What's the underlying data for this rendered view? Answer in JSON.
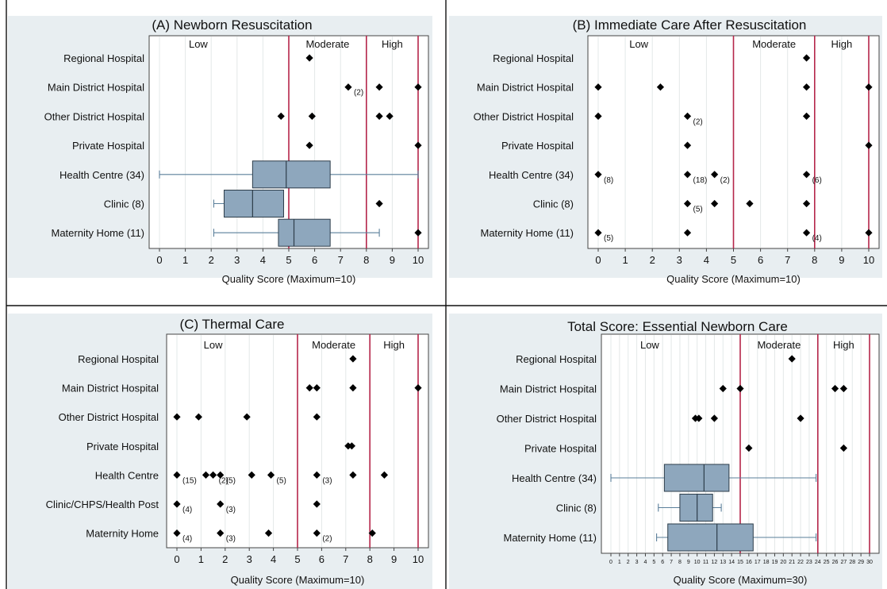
{
  "chart_data": [
    {
      "type": "box",
      "title": "(A) Newborn Resuscitation",
      "xlabel": "Quality Score (Maximum=10)",
      "xlim": [
        0,
        10
      ],
      "ticks": [
        "0",
        "1",
        "2",
        "3",
        "4",
        "5",
        "6",
        "7",
        "8",
        "9",
        "10"
      ],
      "zones": [
        {
          "label": "Low",
          "from": 0,
          "to": 5
        },
        {
          "label": "Moderate",
          "from": 5,
          "to": 8
        },
        {
          "label": "High",
          "from": 8,
          "to": 10
        }
      ],
      "thresholds": [
        5,
        8,
        10
      ],
      "categories": [
        "Regional Hospital",
        "Main District Hospital",
        "Other District Hospital",
        "Private Hospital",
        "Health Centre (34)",
        "Clinic (8)",
        "Maternity Home (11)"
      ],
      "points": [
        {
          "row": 0,
          "x": 5.8,
          "label": ""
        },
        {
          "row": 1,
          "x": 7.3,
          "label": "(2)"
        },
        {
          "row": 1,
          "x": 8.5,
          "label": ""
        },
        {
          "row": 1,
          "x": 10.0,
          "label": ""
        },
        {
          "row": 2,
          "x": 4.7,
          "label": ""
        },
        {
          "row": 2,
          "x": 5.9,
          "label": ""
        },
        {
          "row": 2,
          "x": 8.5,
          "label": ""
        },
        {
          "row": 2,
          "x": 8.9,
          "label": ""
        },
        {
          "row": 3,
          "x": 5.8,
          "label": ""
        },
        {
          "row": 3,
          "x": 10.0,
          "label": ""
        },
        {
          "row": 5,
          "x": 8.5,
          "label": ""
        },
        {
          "row": 6,
          "x": 10.0,
          "label": ""
        }
      ],
      "boxes": [
        {
          "row": 4,
          "min": 0,
          "q1": 3.6,
          "median": 4.9,
          "q3": 6.6,
          "max": 10
        },
        {
          "row": 5,
          "min": 2.1,
          "q1": 2.5,
          "median": 3.6,
          "q3": 4.8,
          "max": 4.8
        },
        {
          "row": 6,
          "min": 2.1,
          "q1": 4.6,
          "median": 5.2,
          "q3": 6.6,
          "max": 8.5
        }
      ]
    },
    {
      "type": "scatter",
      "title": "(B) Immediate Care After Resuscitation",
      "xlabel": "Quality Score (Maximum=10)",
      "xlim": [
        0,
        10
      ],
      "ticks": [
        "0",
        "1",
        "2",
        "3",
        "4",
        "5",
        "6",
        "7",
        "8",
        "9",
        "10"
      ],
      "zones": [
        {
          "label": "Low",
          "from": 0,
          "to": 5
        },
        {
          "label": "Moderate",
          "from": 5,
          "to": 8
        },
        {
          "label": "High",
          "from": 8,
          "to": 10
        }
      ],
      "thresholds": [
        5,
        8,
        10
      ],
      "categories": [
        "Regional Hospital",
        "Main District Hospital",
        "Other District Hospital",
        "Private Hospital",
        "Health Centre (34)",
        "Clinic (8)",
        "Maternity Home (11)"
      ],
      "points": [
        {
          "row": 0,
          "x": 7.7,
          "label": ""
        },
        {
          "row": 1,
          "x": 0,
          "label": ""
        },
        {
          "row": 1,
          "x": 2.3,
          "label": ""
        },
        {
          "row": 1,
          "x": 7.7,
          "label": ""
        },
        {
          "row": 1,
          "x": 10,
          "label": ""
        },
        {
          "row": 2,
          "x": 0,
          "label": ""
        },
        {
          "row": 2,
          "x": 3.3,
          "label": "(2)"
        },
        {
          "row": 2,
          "x": 7.7,
          "label": ""
        },
        {
          "row": 3,
          "x": 3.3,
          "label": ""
        },
        {
          "row": 3,
          "x": 10,
          "label": ""
        },
        {
          "row": 4,
          "x": 0,
          "label": "(8)"
        },
        {
          "row": 4,
          "x": 3.3,
          "label": "(18)"
        },
        {
          "row": 4,
          "x": 4.3,
          "label": "(2)"
        },
        {
          "row": 4,
          "x": 7.7,
          "label": "(6)"
        },
        {
          "row": 5,
          "x": 3.3,
          "label": "(5)"
        },
        {
          "row": 5,
          "x": 4.3,
          "label": ""
        },
        {
          "row": 5,
          "x": 5.6,
          "label": ""
        },
        {
          "row": 5,
          "x": 7.7,
          "label": ""
        },
        {
          "row": 6,
          "x": 0,
          "label": "(5)"
        },
        {
          "row": 6,
          "x": 3.3,
          "label": ""
        },
        {
          "row": 6,
          "x": 7.7,
          "label": "(4)"
        },
        {
          "row": 6,
          "x": 10,
          "label": ""
        }
      ],
      "boxes": []
    },
    {
      "type": "scatter",
      "title": "(C) Thermal Care",
      "xlabel": "Quality Score (Maximum=10)",
      "xlim": [
        0,
        10
      ],
      "ticks": [
        "0",
        "1",
        "2",
        "3",
        "4",
        "5",
        "6",
        "7",
        "8",
        "9",
        "10"
      ],
      "zones": [
        {
          "label": "Low",
          "from": 0,
          "to": 5
        },
        {
          "label": "Moderate",
          "from": 5,
          "to": 8
        },
        {
          "label": "High",
          "from": 8,
          "to": 10
        }
      ],
      "thresholds": [
        5,
        8,
        10
      ],
      "categories": [
        "Regional Hospital",
        "Main District Hospital",
        "Other District Hospital",
        "Private Hospital",
        "Health Centre",
        "Clinic/CHPS/Health Post",
        "Maternity Home"
      ],
      "points": [
        {
          "row": 0,
          "x": 7.3,
          "label": ""
        },
        {
          "row": 1,
          "x": 5.5,
          "label": ""
        },
        {
          "row": 1,
          "x": 5.8,
          "label": ""
        },
        {
          "row": 1,
          "x": 7.3,
          "label": ""
        },
        {
          "row": 1,
          "x": 10,
          "label": ""
        },
        {
          "row": 2,
          "x": 0,
          "label": ""
        },
        {
          "row": 2,
          "x": 0.9,
          "label": ""
        },
        {
          "row": 2,
          "x": 2.9,
          "label": ""
        },
        {
          "row": 2,
          "x": 5.8,
          "label": ""
        },
        {
          "row": 3,
          "x": 7.1,
          "label": ""
        },
        {
          "row": 3,
          "x": 7.25,
          "label": ""
        },
        {
          "row": 4,
          "x": 0,
          "label": "(15)"
        },
        {
          "row": 4,
          "x": 1.2,
          "label": ""
        },
        {
          "row": 4,
          "x": 1.5,
          "label": "(2)"
        },
        {
          "row": 4,
          "x": 1.8,
          "label": "(5)"
        },
        {
          "row": 4,
          "x": 3.1,
          "label": ""
        },
        {
          "row": 4,
          "x": 3.9,
          "label": "(5)"
        },
        {
          "row": 4,
          "x": 5.8,
          "label": "(3)"
        },
        {
          "row": 4,
          "x": 7.3,
          "label": ""
        },
        {
          "row": 4,
          "x": 8.6,
          "label": ""
        },
        {
          "row": 5,
          "x": 0,
          "label": "(4)"
        },
        {
          "row": 5,
          "x": 1.8,
          "label": "(3)"
        },
        {
          "row": 5,
          "x": 5.8,
          "label": ""
        },
        {
          "row": 6,
          "x": 0,
          "label": "(4)"
        },
        {
          "row": 6,
          "x": 1.8,
          "label": "(3)"
        },
        {
          "row": 6,
          "x": 3.8,
          "label": ""
        },
        {
          "row": 6,
          "x": 5.8,
          "label": "(2)"
        },
        {
          "row": 6,
          "x": 8.1,
          "label": ""
        }
      ],
      "boxes": []
    },
    {
      "type": "box",
      "title": "Total Score: Essential Newborn Care",
      "xlabel": "Quality Score (Maximum=30)",
      "xlim": [
        0,
        30
      ],
      "ticks": [
        "0",
        "1",
        "2",
        "3",
        "4",
        "5",
        "6",
        "7",
        "8",
        "9",
        "10",
        "11",
        "12",
        "13",
        "14",
        "15",
        "16",
        "17",
        "18",
        "19",
        "20",
        "21",
        "22",
        "23",
        "24",
        "25",
        "26",
        "27",
        "28",
        "29",
        "30"
      ],
      "zones": [
        {
          "label": "Low",
          "from": 0,
          "to": 15
        },
        {
          "label": "Moderate",
          "from": 15,
          "to": 24
        },
        {
          "label": "High",
          "from": 24,
          "to": 30
        }
      ],
      "thresholds": [
        15,
        24,
        30
      ],
      "categories": [
        "Regional Hospital",
        "Main District Hospital",
        "Other District Hospital",
        "Private Hospital",
        "Health Centre (34)",
        "Clinic (8)",
        "Maternity Home (11)"
      ],
      "points": [
        {
          "row": 0,
          "x": 21,
          "label": ""
        },
        {
          "row": 1,
          "x": 13,
          "label": ""
        },
        {
          "row": 1,
          "x": 15,
          "label": ""
        },
        {
          "row": 1,
          "x": 26,
          "label": ""
        },
        {
          "row": 1,
          "x": 27,
          "label": ""
        },
        {
          "row": 2,
          "x": 9.8,
          "label": ""
        },
        {
          "row": 2,
          "x": 10.2,
          "label": ""
        },
        {
          "row": 2,
          "x": 12,
          "label": ""
        },
        {
          "row": 2,
          "x": 22,
          "label": ""
        },
        {
          "row": 3,
          "x": 16,
          "label": ""
        },
        {
          "row": 3,
          "x": 27,
          "label": ""
        }
      ],
      "boxes": [
        {
          "row": 4,
          "min": 0,
          "q1": 6.2,
          "median": 10.8,
          "q3": 13.7,
          "max": 23.8
        },
        {
          "row": 5,
          "min": 5.5,
          "q1": 8,
          "median": 10,
          "q3": 11.8,
          "max": 12.8
        },
        {
          "row": 6,
          "min": 5.3,
          "q1": 6.6,
          "median": 12.3,
          "q3": 16.5,
          "max": 23.8
        }
      ]
    }
  ]
}
